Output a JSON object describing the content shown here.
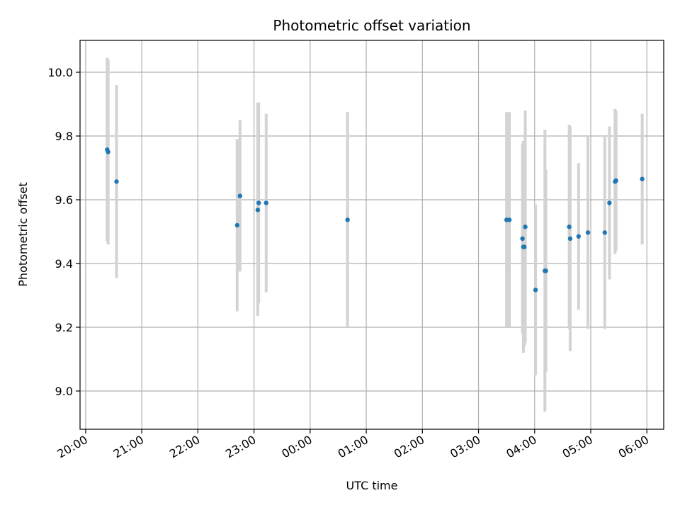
{
  "chart_data": {
    "type": "scatter",
    "title": "Photometric offset variation",
    "xlabel": "UTC time",
    "ylabel": "Photometric offset",
    "grid": true,
    "x_unit": "hour of day (UTC), night starting 20:00",
    "xlim": [
      "19:54",
      "06:18"
    ],
    "ylim": [
      8.88,
      10.1
    ],
    "x_ticks": [
      "20:00",
      "21:00",
      "22:00",
      "23:00",
      "00:00",
      "01:00",
      "02:00",
      "03:00",
      "04:00",
      "05:00",
      "06:00"
    ],
    "y_ticks": [
      9.0,
      9.2,
      9.4,
      9.6,
      9.8,
      10.0
    ],
    "y_tick_labels": [
      "9.0",
      "9.2",
      "9.4",
      "9.6",
      "9.8",
      "10.0"
    ],
    "colors": {
      "point": "#1f77b4",
      "errorbar": "#d3d3d3",
      "grid": "#b0b0b0"
    },
    "points": [
      {
        "t": "20:23",
        "y": 9.757,
        "low": 9.47,
        "high": 10.045
      },
      {
        "t": "20:24",
        "y": 9.75,
        "low": 9.46,
        "high": 10.04
      },
      {
        "t": "20:33",
        "y": 9.657,
        "low": 9.355,
        "high": 9.96
      },
      {
        "t": "22:42",
        "y": 9.52,
        "low": 9.25,
        "high": 9.79
      },
      {
        "t": "22:45",
        "y": 9.612,
        "low": 9.375,
        "high": 9.85
      },
      {
        "t": "23:04",
        "y": 9.568,
        "low": 9.235,
        "high": 9.905
      },
      {
        "t": "23:05",
        "y": 9.59,
        "low": 9.275,
        "high": 9.905
      },
      {
        "t": "23:13",
        "y": 9.59,
        "low": 9.31,
        "high": 9.87
      },
      {
        "t": "00:40",
        "y": 9.537,
        "low": 9.2,
        "high": 9.875
      },
      {
        "t": "03:30",
        "y": 9.537,
        "low": 9.2,
        "high": 9.875
      },
      {
        "t": "03:33",
        "y": 9.537,
        "low": 9.2,
        "high": 9.875
      },
      {
        "t": "03:47",
        "y": 9.478,
        "low": 9.18,
        "high": 9.775
      },
      {
        "t": "03:48",
        "y": 9.452,
        "low": 9.12,
        "high": 9.785
      },
      {
        "t": "03:49",
        "y": 9.452,
        "low": 9.14,
        "high": 9.76
      },
      {
        "t": "03:50",
        "y": 9.515,
        "low": 9.15,
        "high": 9.88
      },
      {
        "t": "04:01",
        "y": 9.317,
        "low": 9.05,
        "high": 9.585
      },
      {
        "t": "04:11",
        "y": 9.377,
        "low": 8.935,
        "high": 9.82
      },
      {
        "t": "04:12",
        "y": 9.377,
        "low": 9.06,
        "high": 9.695
      },
      {
        "t": "04:37",
        "y": 9.515,
        "low": 9.195,
        "high": 9.835
      },
      {
        "t": "04:38",
        "y": 9.478,
        "low": 9.125,
        "high": 9.83
      },
      {
        "t": "04:47",
        "y": 9.485,
        "low": 9.255,
        "high": 9.715
      },
      {
        "t": "04:57",
        "y": 9.497,
        "low": 9.195,
        "high": 9.8
      },
      {
        "t": "05:15",
        "y": 9.497,
        "low": 9.195,
        "high": 9.8
      },
      {
        "t": "05:20",
        "y": 9.59,
        "low": 9.35,
        "high": 9.83
      },
      {
        "t": "05:26",
        "y": 9.657,
        "low": 9.43,
        "high": 9.885
      },
      {
        "t": "05:27",
        "y": 9.66,
        "low": 9.44,
        "high": 9.88
      },
      {
        "t": "05:55",
        "y": 9.665,
        "low": 9.46,
        "high": 9.87
      }
    ]
  }
}
